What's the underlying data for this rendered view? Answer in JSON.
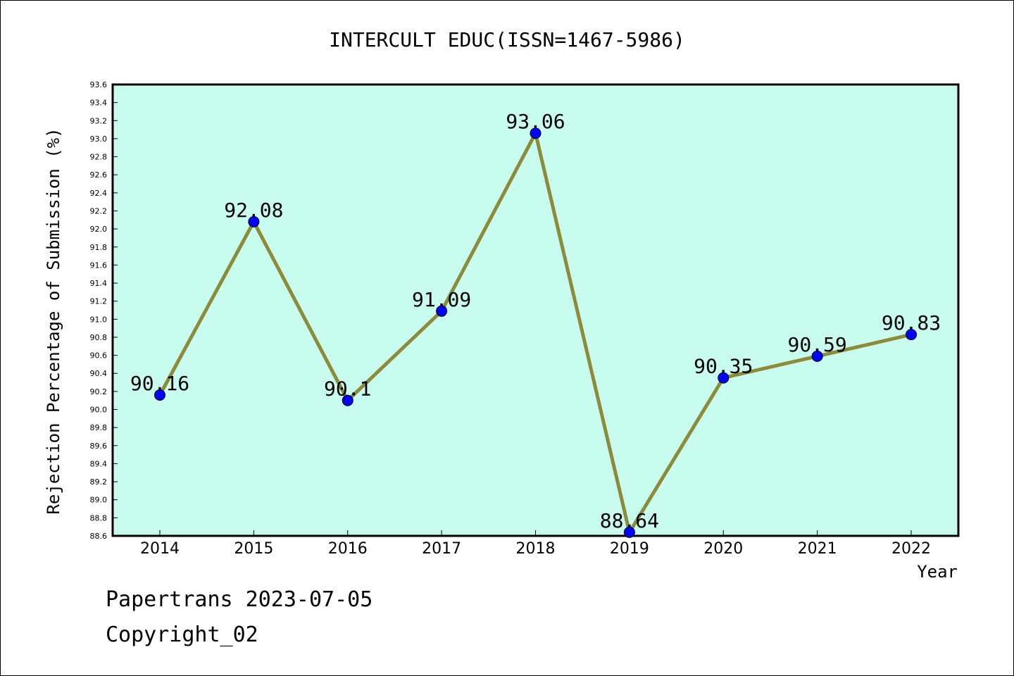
{
  "chart_data": {
    "type": "line",
    "title": "INTERCULT EDUC(ISSN=1467-5986)",
    "xlabel": "Year",
    "ylabel": "Rejection Percentage of Submission (%)",
    "categories": [
      "2014",
      "2015",
      "2016",
      "2017",
      "2018",
      "2019",
      "2020",
      "2021",
      "2022"
    ],
    "series": [
      {
        "values": [
          90.16,
          92.08,
          90.1,
          91.09,
          93.06,
          88.64,
          90.35,
          90.59,
          90.83
        ]
      }
    ],
    "data_labels": [
      "90.16",
      "92.08",
      "90.1",
      "91.09",
      "93.06",
      "88.64",
      "90.35",
      "90.59",
      "90.83"
    ],
    "ylim": [
      88.6,
      93.6
    ],
    "y_ticks": [
      "88.6",
      "88.8",
      "89.0",
      "89.2",
      "89.4",
      "89.6",
      "89.8",
      "90.0",
      "90.2",
      "90.4",
      "90.6",
      "90.8",
      "91.0",
      "91.2",
      "91.4",
      "91.6",
      "91.8",
      "92.0",
      "92.2",
      "92.4",
      "92.6",
      "92.8",
      "93.0",
      "93.2",
      "93.4",
      "93.6"
    ],
    "grid": false,
    "legend": "none",
    "colors": {
      "plot_background": "#c8fcee",
      "line": "#8b8b3a",
      "marker": "#0000ff",
      "axis": "#000000"
    }
  },
  "footer": {
    "line1": "Papertrans 2023-07-05",
    "line2": "Copyright_02"
  }
}
